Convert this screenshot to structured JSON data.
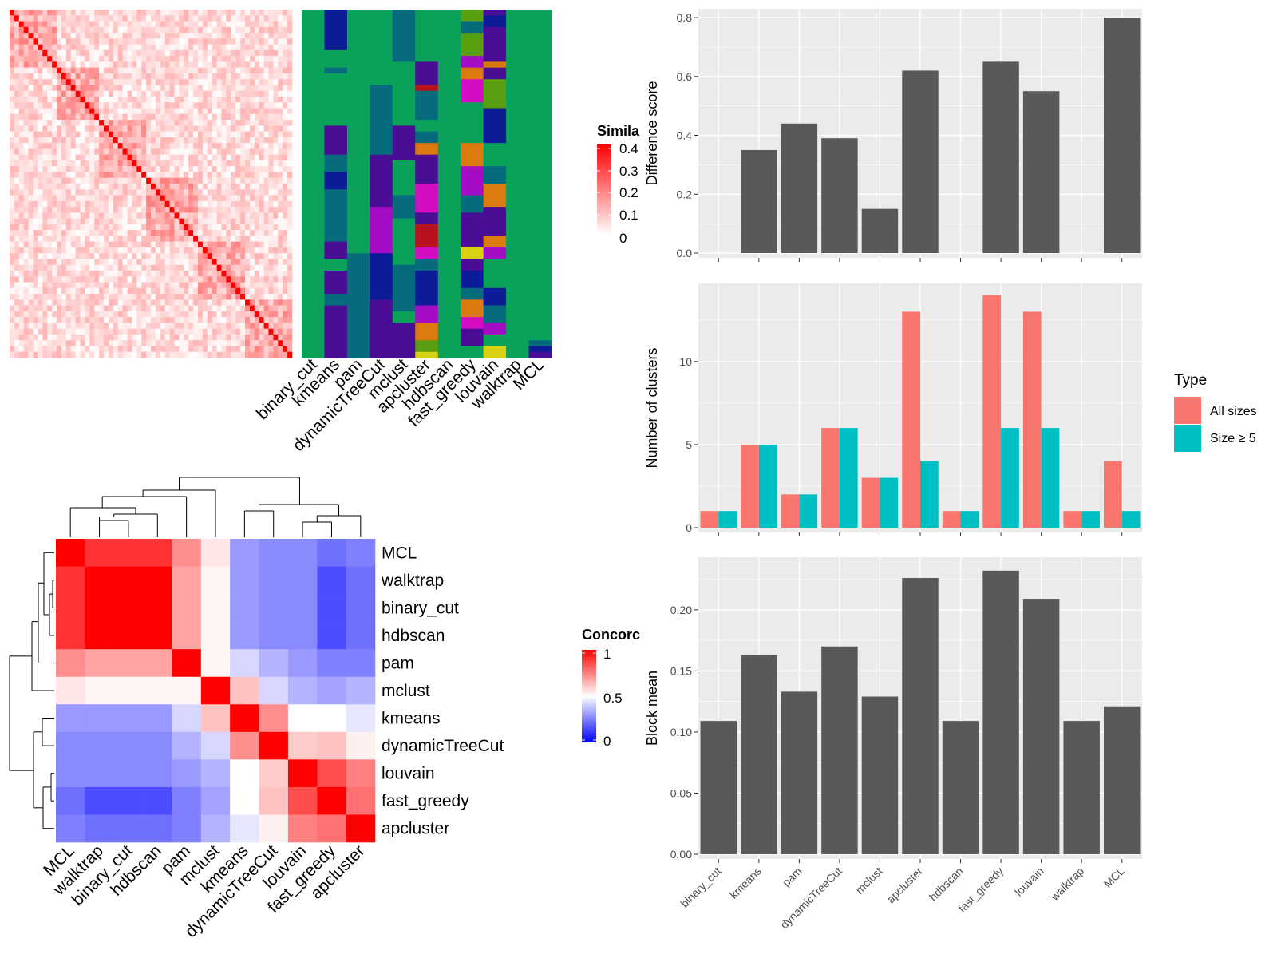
{
  "methods": [
    "binary_cut",
    "kmeans",
    "pam",
    "dynamicTreeCut",
    "mclust",
    "apcluster",
    "hdbscan",
    "fast_greedy",
    "louvain",
    "walktrap",
    "MCL"
  ],
  "colors": {
    "panel_bg": "#ebebeb",
    "grid": "#ffffff",
    "bar_dark": "#595959",
    "bar_all": "#f8766d",
    "bar_size5": "#00bfc4",
    "similarity_high": "#ff0000",
    "similarity_low": "#ffffff",
    "concordance_high": "#ff0000",
    "concordance_mid": "#ffffff",
    "concordance_low": "#0000ff"
  },
  "similarity_legend": {
    "title": "Simila",
    "labels": [
      "0.4",
      "0.3",
      "0.2",
      "0.1",
      "0"
    ]
  },
  "concordance_legend": {
    "title": "Concorc",
    "labels": [
      "1",
      "0.5",
      "0"
    ]
  },
  "type_legend": {
    "title": "Type",
    "items": [
      "All sizes",
      "Size ≥ 5"
    ]
  },
  "cluster_palette": [
    "#0aa15a",
    "#0b1c96",
    "#066c7d",
    "#4a0d96",
    "#a50dc4",
    "#d30dc4",
    "#5a9e12",
    "#db7b0f",
    "#b9121f",
    "#d8d012",
    "#262a8f",
    "#7b00a6"
  ],
  "chart_data": [
    {
      "type": "heatmap",
      "name": "similarity",
      "n": 60,
      "scale": [
        0,
        0.4
      ],
      "blocks": [
        [
          0,
          9
        ],
        [
          10,
          18
        ],
        [
          19,
          28
        ],
        [
          29,
          39
        ],
        [
          40,
          49
        ],
        [
          50,
          59
        ]
      ],
      "legend": "Similarity"
    },
    {
      "type": "heatmap",
      "name": "cluster_assignments",
      "columns": [
        "binary_cut",
        "kmeans",
        "pam",
        "dynamicTreeCut",
        "mclust",
        "apcluster",
        "hdbscan",
        "fast_greedy",
        "louvain",
        "walktrap",
        "MCL"
      ]
    },
    {
      "type": "heatmap",
      "name": "concordance",
      "order": [
        "MCL",
        "walktrap",
        "binary_cut",
        "hdbscan",
        "pam",
        "mclust",
        "kmeans",
        "dynamicTreeCut",
        "louvain",
        "fast_greedy",
        "apcluster"
      ],
      "values": [
        [
          1.0,
          0.9,
          0.9,
          0.9,
          0.72,
          0.55,
          0.3,
          0.27,
          0.27,
          0.22,
          0.25
        ],
        [
          0.9,
          1.0,
          1.0,
          1.0,
          0.68,
          0.52,
          0.3,
          0.27,
          0.27,
          0.15,
          0.22
        ],
        [
          0.9,
          1.0,
          1.0,
          1.0,
          0.68,
          0.52,
          0.3,
          0.27,
          0.27,
          0.15,
          0.22
        ],
        [
          0.9,
          1.0,
          1.0,
          1.0,
          0.68,
          0.52,
          0.3,
          0.27,
          0.27,
          0.15,
          0.22
        ],
        [
          0.72,
          0.68,
          0.68,
          0.68,
          1.0,
          0.52,
          0.42,
          0.35,
          0.3,
          0.25,
          0.25
        ],
        [
          0.55,
          0.52,
          0.52,
          0.52,
          0.52,
          1.0,
          0.62,
          0.42,
          0.35,
          0.32,
          0.35
        ],
        [
          0.3,
          0.3,
          0.3,
          0.3,
          0.42,
          0.62,
          1.0,
          0.72,
          0.5,
          0.5,
          0.45
        ],
        [
          0.27,
          0.27,
          0.27,
          0.27,
          0.35,
          0.42,
          0.72,
          1.0,
          0.6,
          0.62,
          0.53
        ],
        [
          0.27,
          0.27,
          0.27,
          0.27,
          0.3,
          0.35,
          0.5,
          0.6,
          1.0,
          0.85,
          0.75
        ],
        [
          0.22,
          0.15,
          0.15,
          0.15,
          0.25,
          0.32,
          0.5,
          0.62,
          0.85,
          1.0,
          0.78
        ],
        [
          0.25,
          0.22,
          0.22,
          0.22,
          0.25,
          0.35,
          0.45,
          0.53,
          0.75,
          0.78,
          1.0
        ]
      ],
      "range": [
        0,
        1
      ]
    },
    {
      "type": "bar",
      "name": "difference_score",
      "categories": [
        "binary_cut",
        "kmeans",
        "pam",
        "dynamicTreeCut",
        "mclust",
        "apcluster",
        "hdbscan",
        "fast_greedy",
        "louvain",
        "walktrap",
        "MCL"
      ],
      "values": [
        0,
        0.35,
        0.44,
        0.39,
        0.15,
        0.62,
        0,
        0.65,
        0.55,
        0,
        0.8
      ],
      "ylabel": "Difference score",
      "ylim": [
        0,
        0.83
      ],
      "yticks": [
        0.0,
        0.2,
        0.4,
        0.6,
        0.8
      ],
      "ytick_labels": [
        "0.0",
        "0.2",
        "0.4",
        "0.6",
        "0.8"
      ]
    },
    {
      "type": "bar",
      "name": "number_of_clusters",
      "categories": [
        "binary_cut",
        "kmeans",
        "pam",
        "dynamicTreeCut",
        "mclust",
        "apcluster",
        "hdbscan",
        "fast_greedy",
        "louvain",
        "walktrap",
        "MCL"
      ],
      "series": [
        {
          "name": "All sizes",
          "values": [
            1,
            5,
            2,
            6,
            3,
            13,
            1,
            14,
            13,
            1,
            4
          ]
        },
        {
          "name": "Size ≥ 5",
          "values": [
            1,
            5,
            2,
            6,
            3,
            4,
            1,
            6,
            6,
            1,
            1
          ]
        }
      ],
      "ylabel": "Number of clusters",
      "ylim": [
        0,
        14.7
      ],
      "yticks": [
        0,
        5,
        10
      ],
      "ytick_labels": [
        "0",
        "5",
        "10"
      ]
    },
    {
      "type": "bar",
      "name": "block_mean",
      "categories": [
        "binary_cut",
        "kmeans",
        "pam",
        "dynamicTreeCut",
        "mclust",
        "apcluster",
        "hdbscan",
        "fast_greedy",
        "louvain",
        "walktrap",
        "MCL"
      ],
      "values": [
        0.109,
        0.163,
        0.133,
        0.17,
        0.129,
        0.226,
        0.109,
        0.232,
        0.209,
        0.109,
        0.121
      ],
      "ylabel": "Block mean",
      "ylim": [
        0,
        0.243
      ],
      "yticks": [
        0.0,
        0.05,
        0.1,
        0.15,
        0.2
      ],
      "ytick_labels": [
        "0.00",
        "0.05",
        "0.10",
        "0.15",
        "0.20"
      ]
    }
  ]
}
